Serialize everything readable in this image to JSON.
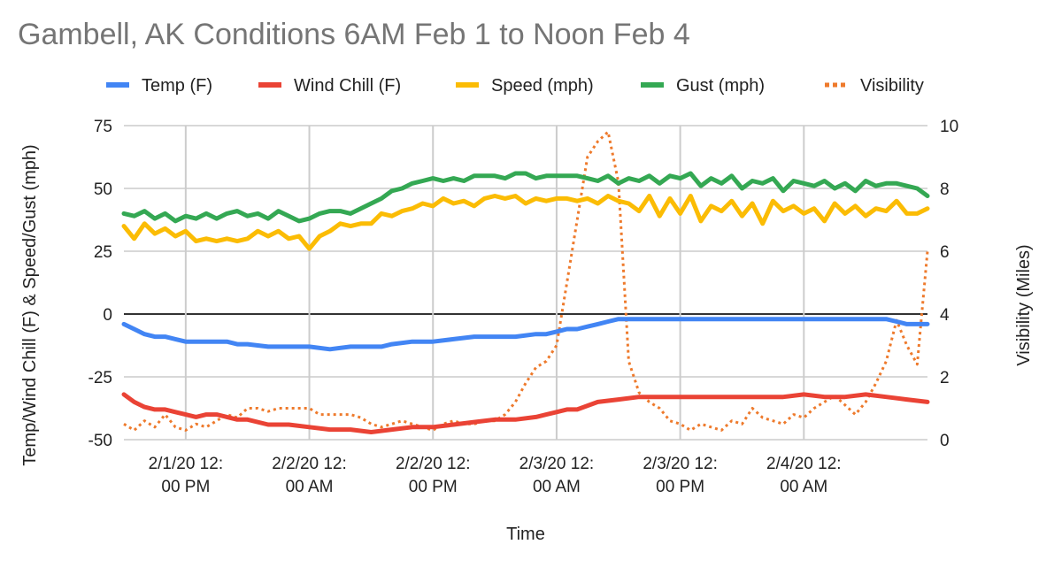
{
  "chart_data": {
    "type": "line",
    "title": "Gambell, AK Conditions 6AM Feb 1 to Noon Feb 4",
    "xlabel": "Time",
    "ylabel": "Temp/Wind Chill (F) & Speed/Gust (mph)",
    "y2label": "Visibility (Miles)",
    "legend_position": "top",
    "grid": true,
    "x_range_hours": [
      0,
      78
    ],
    "x_unit": "hours since 2/1/20 6:00 AM",
    "x_ticks": [
      {
        "x": 6,
        "line1": "2/1/20 12:",
        "line2": "00 PM"
      },
      {
        "x": 18,
        "line1": "2/2/20 12:",
        "line2": "00 AM"
      },
      {
        "x": 30,
        "line1": "2/2/20 12:",
        "line2": "00 PM"
      },
      {
        "x": 42,
        "line1": "2/3/20 12:",
        "line2": "00 AM"
      },
      {
        "x": 54,
        "line1": "2/3/20 12:",
        "line2": "00 PM"
      },
      {
        "x": 66,
        "line1": "2/4/20 12:",
        "line2": "00 AM"
      }
    ],
    "ylim": [
      -50,
      75
    ],
    "y_ticks": [
      -50,
      -25,
      0,
      25,
      50,
      75
    ],
    "y2lim": [
      0,
      10
    ],
    "y2_ticks": [
      0,
      2,
      4,
      6,
      8,
      10
    ],
    "series": [
      {
        "name": "Temp (F)",
        "color": "#4285f4",
        "axis": "left",
        "style": "solid",
        "x": [
          0,
          1,
          2,
          3,
          4,
          5,
          6,
          7,
          8,
          9,
          10,
          11,
          12,
          14,
          16,
          18,
          20,
          22,
          24,
          25,
          26,
          28,
          30,
          32,
          34,
          36,
          38,
          40,
          41,
          42,
          43,
          44,
          45,
          46,
          47,
          48,
          50,
          52,
          54,
          56,
          58,
          60,
          62,
          64,
          66,
          68,
          70,
          72,
          74,
          75,
          76,
          77,
          78
        ],
        "y": [
          -4,
          -6,
          -8,
          -9,
          -9,
          -10,
          -11,
          -11,
          -11,
          -11,
          -11,
          -12,
          -12,
          -13,
          -13,
          -13,
          -14,
          -13,
          -13,
          -13,
          -12,
          -11,
          -11,
          -10,
          -9,
          -9,
          -9,
          -8,
          -8,
          -7,
          -6,
          -6,
          -5,
          -4,
          -3,
          -2,
          -2,
          -2,
          -2,
          -2,
          -2,
          -2,
          -2,
          -2,
          -2,
          -2,
          -2,
          -2,
          -2,
          -3,
          -4,
          -4,
          -4
        ]
      },
      {
        "name": "Wind Chill (F)",
        "color": "#ea4335",
        "axis": "left",
        "style": "solid",
        "x": [
          0,
          1,
          2,
          3,
          4,
          5,
          6,
          7,
          8,
          9,
          10,
          11,
          12,
          14,
          16,
          18,
          20,
          22,
          24,
          26,
          28,
          30,
          32,
          34,
          36,
          38,
          40,
          41,
          42,
          43,
          44,
          46,
          48,
          50,
          52,
          54,
          56,
          58,
          60,
          62,
          64,
          66,
          68,
          70,
          72,
          74,
          76,
          78
        ],
        "y": [
          -32,
          -35,
          -37,
          -38,
          -38,
          -39,
          -40,
          -41,
          -40,
          -40,
          -41,
          -42,
          -42,
          -44,
          -44,
          -45,
          -46,
          -46,
          -47,
          -46,
          -45,
          -45,
          -44,
          -43,
          -42,
          -42,
          -41,
          -40,
          -39,
          -38,
          -38,
          -35,
          -34,
          -33,
          -33,
          -33,
          -33,
          -33,
          -33,
          -33,
          -33,
          -32,
          -33,
          -33,
          -32,
          -33,
          -34,
          -35
        ]
      },
      {
        "name": "Speed (mph)",
        "color": "#fbbc04",
        "axis": "left",
        "style": "solid",
        "x": [
          0,
          1,
          2,
          3,
          4,
          5,
          6,
          7,
          8,
          9,
          10,
          11,
          12,
          13,
          14,
          15,
          16,
          17,
          18,
          19,
          20,
          21,
          22,
          23,
          24,
          25,
          26,
          27,
          28,
          29,
          30,
          31,
          32,
          33,
          34,
          35,
          36,
          37,
          38,
          39,
          40,
          41,
          42,
          43,
          44,
          45,
          46,
          47,
          48,
          49,
          50,
          51,
          52,
          53,
          54,
          55,
          56,
          57,
          58,
          59,
          60,
          61,
          62,
          63,
          64,
          65,
          66,
          67,
          68,
          69,
          70,
          71,
          72,
          73,
          74,
          75,
          76,
          77,
          78
        ],
        "y": [
          35,
          30,
          36,
          32,
          34,
          31,
          33,
          29,
          30,
          29,
          30,
          29,
          30,
          33,
          31,
          33,
          30,
          31,
          26,
          31,
          33,
          36,
          35,
          36,
          36,
          40,
          39,
          41,
          42,
          44,
          43,
          46,
          44,
          45,
          43,
          46,
          47,
          46,
          47,
          44,
          46,
          45,
          46,
          46,
          45,
          46,
          44,
          47,
          45,
          44,
          41,
          47,
          39,
          46,
          40,
          47,
          37,
          43,
          41,
          45,
          39,
          44,
          36,
          45,
          41,
          43,
          40,
          42,
          37,
          44,
          40,
          43,
          39,
          42,
          41,
          45,
          40,
          40,
          42
        ]
      },
      {
        "name": "Gust (mph)",
        "color": "#34a853",
        "axis": "left",
        "style": "solid",
        "x": [
          0,
          1,
          2,
          3,
          4,
          5,
          6,
          7,
          8,
          9,
          10,
          11,
          12,
          13,
          14,
          15,
          16,
          17,
          18,
          19,
          20,
          21,
          22,
          23,
          24,
          25,
          26,
          27,
          28,
          29,
          30,
          31,
          32,
          33,
          34,
          35,
          36,
          37,
          38,
          39,
          40,
          41,
          42,
          43,
          44,
          45,
          46,
          47,
          48,
          49,
          50,
          51,
          52,
          53,
          54,
          55,
          56,
          57,
          58,
          59,
          60,
          61,
          62,
          63,
          64,
          65,
          66,
          67,
          68,
          69,
          70,
          71,
          72,
          73,
          74,
          75,
          76,
          77,
          78
        ],
        "y": [
          40,
          39,
          41,
          38,
          40,
          37,
          39,
          38,
          40,
          38,
          40,
          41,
          39,
          40,
          38,
          41,
          39,
          37,
          38,
          40,
          41,
          41,
          40,
          42,
          44,
          46,
          49,
          50,
          52,
          53,
          54,
          53,
          54,
          53,
          55,
          55,
          55,
          54,
          56,
          56,
          54,
          55,
          55,
          55,
          55,
          54,
          53,
          55,
          52,
          54,
          53,
          55,
          52,
          55,
          54,
          56,
          51,
          54,
          52,
          55,
          50,
          53,
          52,
          54,
          49,
          53,
          52,
          51,
          53,
          50,
          52,
          49,
          53,
          51,
          52,
          52,
          51,
          50,
          47
        ]
      },
      {
        "name": "Visibility",
        "color": "#ee7a2c",
        "axis": "right",
        "style": "dotted",
        "x": [
          0,
          1,
          2,
          3,
          4,
          5,
          6,
          7,
          8,
          9,
          10,
          11,
          12,
          13,
          14,
          15,
          16,
          17,
          18,
          19,
          20,
          21,
          22,
          23,
          24,
          25,
          26,
          27,
          28,
          29,
          30,
          31,
          32,
          33,
          34,
          35,
          36,
          37,
          38,
          39,
          40,
          41,
          42,
          43,
          44,
          45,
          46,
          47,
          48,
          49,
          50,
          51,
          52,
          53,
          54,
          55,
          56,
          57,
          58,
          59,
          60,
          61,
          62,
          63,
          64,
          65,
          66,
          67,
          68,
          69,
          70,
          71,
          72,
          73,
          74,
          75,
          76,
          77,
          78
        ],
        "y": [
          0.5,
          0.3,
          0.6,
          0.4,
          0.8,
          0.4,
          0.3,
          0.5,
          0.4,
          0.6,
          0.8,
          0.7,
          1.0,
          1.0,
          0.9,
          1.0,
          1.0,
          1.0,
          1.0,
          0.8,
          0.8,
          0.8,
          0.8,
          0.7,
          0.5,
          0.4,
          0.5,
          0.6,
          0.5,
          0.4,
          0.3,
          0.5,
          0.6,
          0.5,
          0.5,
          0.6,
          0.6,
          0.8,
          1.2,
          1.8,
          2.3,
          2.5,
          3.0,
          5.0,
          7.0,
          9.0,
          9.5,
          9.8,
          8.2,
          2.5,
          1.5,
          1.2,
          1.0,
          0.6,
          0.5,
          0.3,
          0.5,
          0.4,
          0.3,
          0.6,
          0.5,
          1.0,
          0.7,
          0.6,
          0.5,
          0.8,
          0.7,
          1.0,
          1.2,
          1.4,
          1.1,
          0.8,
          1.2,
          1.8,
          2.5,
          3.8,
          3.0,
          2.4,
          6.0
        ]
      }
    ]
  }
}
